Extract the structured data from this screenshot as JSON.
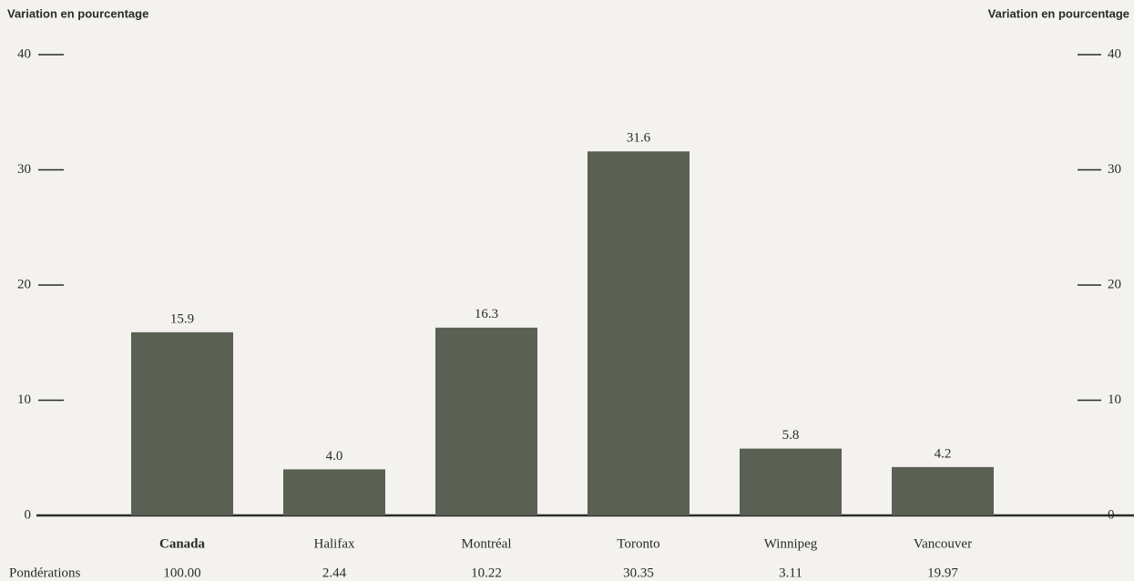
{
  "chart_data": {
    "type": "bar",
    "ylabel": "Variation en pourcentage",
    "y2label": "Variation en pourcentage",
    "categories": [
      "Canada",
      "Halifax",
      "Montréal",
      "Toronto",
      "Winnipeg",
      "Vancouver"
    ],
    "values": [
      15.9,
      4.0,
      16.3,
      31.6,
      5.8,
      4.2
    ],
    "value_labels": [
      "15.9",
      "4.0",
      "16.3",
      "31.6",
      "5.8",
      "4.2"
    ],
    "color": "#5b6055",
    "weights_label": "Pondérations",
    "weights": [
      "100.00",
      "2.44",
      "10.22",
      "30.35",
      "3.11",
      "19.97"
    ],
    "ylim": [
      0,
      40
    ],
    "yticks": [
      0,
      10,
      20,
      30,
      40
    ],
    "y2lim": [
      0,
      40
    ],
    "y2ticks": [
      0,
      10,
      20,
      30,
      40
    ]
  }
}
